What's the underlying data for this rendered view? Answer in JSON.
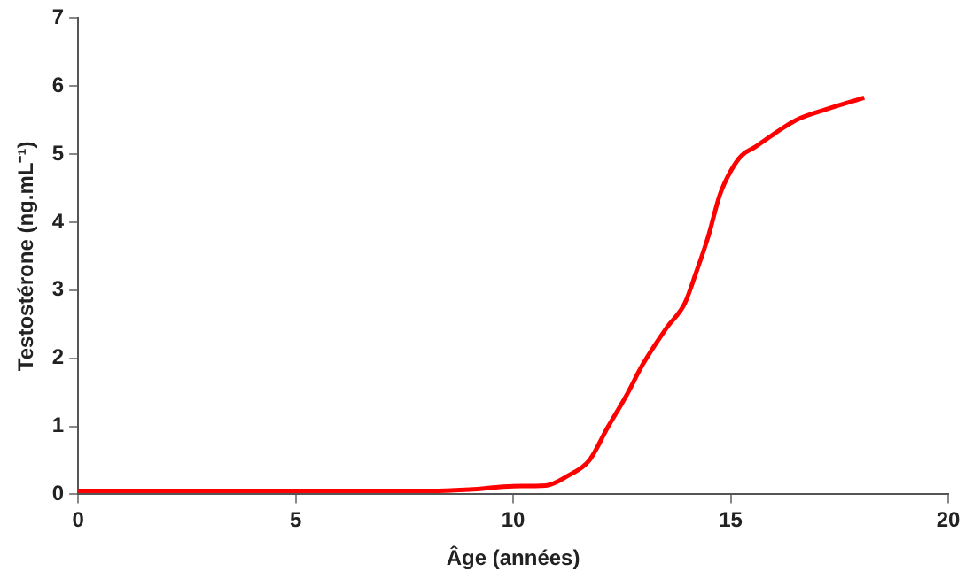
{
  "chart_data": {
    "type": "line",
    "xlabel": "Âge (années)",
    "ylabel": "Testostérone (ng.mL⁻¹)",
    "x": [
      0,
      2,
      4,
      6,
      8,
      9,
      10,
      10.75,
      11.25,
      11.75,
      12.17,
      12.6,
      12.98,
      13.53,
      13.94,
      14.2,
      14.48,
      14.75,
      15,
      15.25,
      15.55,
      16,
      16.5,
      17.2,
      18.07
    ],
    "series": [
      {
        "color": "#ff0000",
        "values": [
          0.05,
          0.05,
          0.05,
          0.05,
          0.05,
          0.07,
          0.12,
          0.13,
          0.27,
          0.5,
          0.98,
          1.45,
          1.91,
          2.45,
          2.8,
          3.25,
          3.78,
          4.4,
          4.75,
          4.98,
          5.1,
          5.3,
          5.5,
          5.66,
          5.83
        ]
      }
    ],
    "xlim": [
      0,
      20
    ],
    "xticks": [
      0,
      5,
      10,
      15,
      20
    ],
    "ylim": [
      0,
      7
    ],
    "yticks": [
      0,
      1,
      2,
      3,
      4,
      5,
      6,
      7
    ],
    "grid": false,
    "legend": false,
    "marker": "none",
    "line_style": "solid"
  }
}
